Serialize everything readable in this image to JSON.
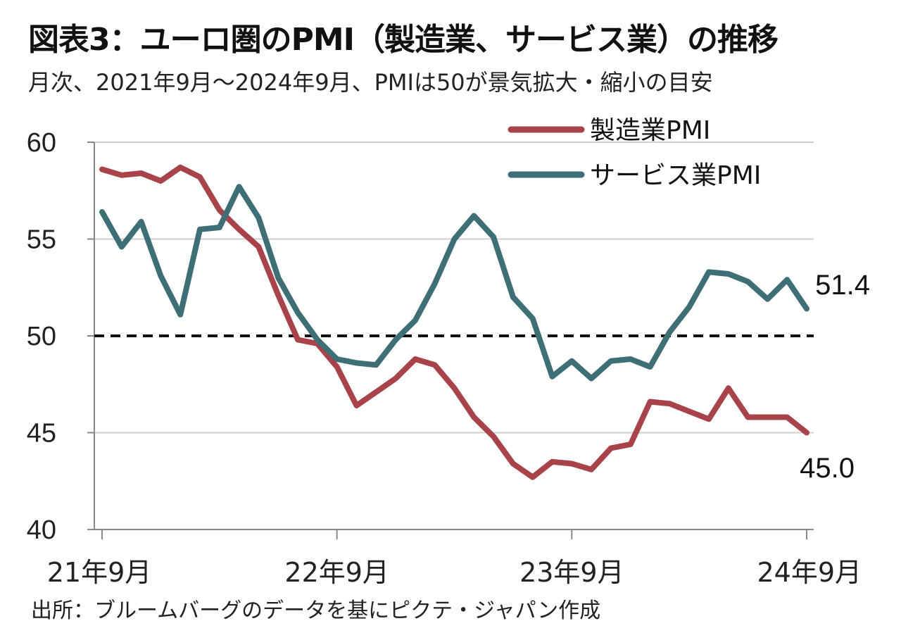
{
  "chart_data": {
    "type": "line",
    "title": "図表3：ユーロ圏のPMI（製造業、サービス業）の推移",
    "subtitle": "月次、2021年9月～2024年9月、PMIは50が景気拡大・縮小の目安",
    "source": "出所：ブルームバーグのデータを基にピクテ・ジャパン作成",
    "xlabel": "",
    "ylabel": "",
    "ylim": [
      40,
      60
    ],
    "yticks": [
      "40",
      "45",
      "50",
      "55",
      "60"
    ],
    "x_tick_labels": [
      "21年9月",
      "22年9月",
      "23年9月",
      "24年9月"
    ],
    "reference_line": 50,
    "grid": true,
    "legend_position": "top-right",
    "x": [
      "2021-09",
      "2021-10",
      "2021-11",
      "2021-12",
      "2022-01",
      "2022-02",
      "2022-03",
      "2022-04",
      "2022-05",
      "2022-06",
      "2022-07",
      "2022-08",
      "2022-09",
      "2022-10",
      "2022-11",
      "2022-12",
      "2023-01",
      "2023-02",
      "2023-03",
      "2023-04",
      "2023-05",
      "2023-06",
      "2023-07",
      "2023-08",
      "2023-09",
      "2023-10",
      "2023-11",
      "2023-12",
      "2024-01",
      "2024-02",
      "2024-03",
      "2024-04",
      "2024-05",
      "2024-06",
      "2024-07",
      "2024-08",
      "2024-09"
    ],
    "series": [
      {
        "name": "製造業PMI",
        "color": "#A8434A",
        "values": [
          58.6,
          58.3,
          58.4,
          58.0,
          58.7,
          58.2,
          56.5,
          55.5,
          54.6,
          52.1,
          49.8,
          49.6,
          48.4,
          46.4,
          47.1,
          47.8,
          48.8,
          48.5,
          47.3,
          45.8,
          44.8,
          43.4,
          42.7,
          43.5,
          43.4,
          43.1,
          44.2,
          44.4,
          46.6,
          46.5,
          46.1,
          45.7,
          47.3,
          45.8,
          45.8,
          45.8,
          45.0
        ],
        "end_label": "45.0"
      },
      {
        "name": "サービス業PMI",
        "color": "#3E6E76",
        "values": [
          56.4,
          54.6,
          55.9,
          53.1,
          51.1,
          55.5,
          55.6,
          57.7,
          56.1,
          53.0,
          51.2,
          49.8,
          48.8,
          48.6,
          48.5,
          49.8,
          50.8,
          52.7,
          55.0,
          56.2,
          55.1,
          52.0,
          50.9,
          47.9,
          48.7,
          47.8,
          48.7,
          48.8,
          48.4,
          50.2,
          51.5,
          53.3,
          53.2,
          52.8,
          51.9,
          52.9,
          51.4
        ],
        "end_label": "51.4"
      }
    ]
  }
}
